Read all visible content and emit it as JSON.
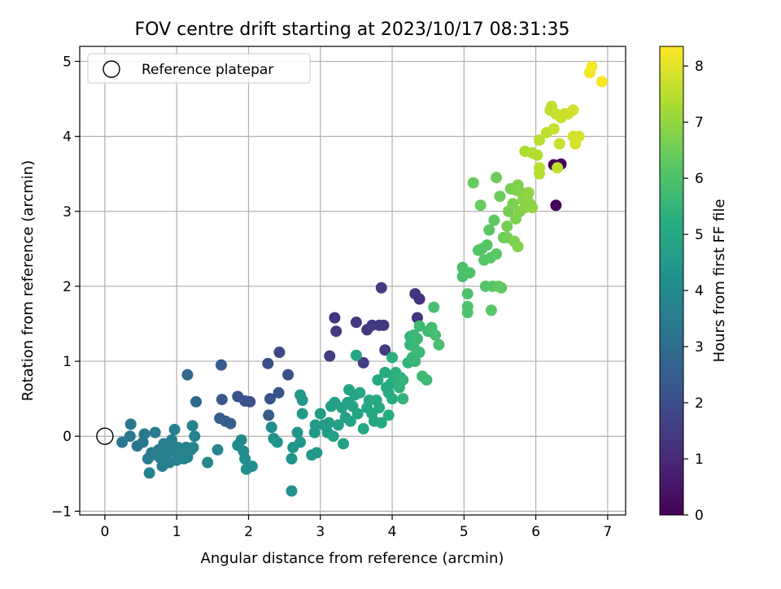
{
  "chart_data": {
    "type": "scatter",
    "title": "FOV centre drift starting at 2023/10/17 08:31:35",
    "xlabel": "Angular distance from reference (arcmin)",
    "ylabel": "Rotation from reference (arcmin)",
    "xlim": [
      -0.35,
      7.25
    ],
    "ylim": [
      -1.05,
      5.2
    ],
    "xticks": [
      "0",
      "1",
      "2",
      "3",
      "4",
      "5",
      "6",
      "7"
    ],
    "yticks": [
      "−1",
      "0",
      "1",
      "2",
      "3",
      "4",
      "5"
    ],
    "grid": true,
    "legend": {
      "position": "top-left",
      "entries": [
        "Reference platepar"
      ]
    },
    "reference_point": {
      "x": 0,
      "y": 0
    },
    "colorbar": {
      "label": "Hours from first FF file",
      "range": [
        0,
        8.35
      ],
      "ticks": [
        "0",
        "1",
        "2",
        "3",
        "4",
        "5",
        "6",
        "7",
        "8"
      ],
      "colormap": "viridis"
    },
    "points": [
      [
        6.25,
        3.62,
        0.0
      ],
      [
        6.35,
        3.63,
        0.05
      ],
      [
        6.28,
        3.08,
        0.1
      ],
      [
        3.85,
        1.98,
        1.5
      ],
      [
        4.32,
        1.9,
        1.3
      ],
      [
        4.38,
        1.83,
        1.25
      ],
      [
        3.2,
        1.58,
        1.35
      ],
      [
        4.35,
        1.58,
        1.3
      ],
      [
        3.5,
        1.52,
        1.4
      ],
      [
        3.72,
        1.48,
        1.45
      ],
      [
        3.82,
        1.48,
        1.42
      ],
      [
        3.88,
        1.48,
        1.4
      ],
      [
        3.65,
        1.42,
        1.45
      ],
      [
        3.22,
        1.4,
        1.5
      ],
      [
        3.9,
        1.15,
        1.5
      ],
      [
        3.13,
        1.07,
        1.55
      ],
      [
        3.6,
        0.98,
        1.5
      ],
      [
        2.43,
        1.12,
        1.8
      ],
      [
        2.27,
        0.97,
        2.0
      ],
      [
        2.55,
        0.82,
        2.0
      ],
      [
        2.42,
        0.58,
        2.2
      ],
      [
        2.3,
        0.5,
        2.2
      ],
      [
        1.85,
        0.53,
        2.15
      ],
      [
        1.95,
        0.47,
        2.1
      ],
      [
        2.02,
        0.46,
        2.1
      ],
      [
        1.63,
        0.49,
        2.3
      ],
      [
        2.28,
        0.28,
        2.4
      ],
      [
        1.6,
        0.24,
        2.4
      ],
      [
        1.68,
        0.2,
        2.45
      ],
      [
        1.75,
        0.17,
        2.5
      ],
      [
        1.62,
        0.95,
        2.45
      ],
      [
        1.15,
        0.82,
        2.8
      ],
      [
        1.27,
        0.46,
        2.9
      ],
      [
        0.36,
        0.16,
        3.3
      ],
      [
        0.24,
        -0.08,
        3.3
      ],
      [
        0.35,
        0.0,
        3.35
      ],
      [
        0.45,
        -0.13,
        3.3
      ],
      [
        0.53,
        -0.08,
        3.4
      ],
      [
        0.55,
        0.03,
        3.4
      ],
      [
        0.6,
        -0.3,
        3.45
      ],
      [
        0.65,
        -0.22,
        3.5
      ],
      [
        0.7,
        0.05,
        3.45
      ],
      [
        0.75,
        -0.18,
        3.5
      ],
      [
        0.78,
        -0.3,
        3.5
      ],
      [
        0.8,
        -0.4,
        3.55
      ],
      [
        0.82,
        -0.1,
        3.6
      ],
      [
        0.85,
        -0.25,
        3.55
      ],
      [
        0.88,
        -0.15,
        3.6
      ],
      [
        0.9,
        -0.35,
        3.6
      ],
      [
        0.93,
        -0.05,
        3.65
      ],
      [
        0.95,
        -0.2,
        3.6
      ],
      [
        0.97,
        0.09,
        3.6
      ],
      [
        1.0,
        -0.32,
        3.7
      ],
      [
        1.02,
        -0.15,
        3.7
      ],
      [
        1.05,
        -0.25,
        3.7
      ],
      [
        1.1,
        -0.3,
        3.7
      ],
      [
        1.15,
        -0.28,
        3.75
      ],
      [
        1.2,
        -0.18,
        3.7
      ],
      [
        1.22,
        0.14,
        3.75
      ],
      [
        1.25,
        0.0,
        3.75
      ],
      [
        1.23,
        -0.15,
        3.8
      ],
      [
        1.13,
        -0.15,
        3.7
      ],
      [
        0.62,
        -0.49,
        3.75
      ],
      [
        0.72,
        -0.25,
        3.6
      ],
      [
        0.85,
        -0.18,
        3.65
      ],
      [
        1.43,
        -0.35,
        3.9
      ],
      [
        1.57,
        -0.18,
        3.9
      ],
      [
        1.85,
        -0.12,
        4.0
      ],
      [
        1.9,
        -0.05,
        4.0
      ],
      [
        1.93,
        -0.2,
        4.05
      ],
      [
        1.95,
        -0.3,
        4.1
      ],
      [
        1.97,
        -0.44,
        4.1
      ],
      [
        2.05,
        -0.4,
        4.1
      ],
      [
        2.32,
        0.12,
        4.15
      ],
      [
        2.35,
        -0.03,
        4.2
      ],
      [
        2.4,
        -0.08,
        4.25
      ],
      [
        2.6,
        -0.73,
        4.3
      ],
      [
        2.6,
        -0.3,
        4.35
      ],
      [
        2.62,
        -0.15,
        4.35
      ],
      [
        2.68,
        0.05,
        4.4
      ],
      [
        2.72,
        -0.08,
        4.4
      ],
      [
        2.72,
        0.55,
        4.45
      ],
      [
        2.75,
        0.48,
        4.5
      ],
      [
        2.75,
        0.3,
        4.45
      ],
      [
        2.88,
        -0.25,
        4.5
      ],
      [
        2.92,
        0.05,
        4.5
      ],
      [
        2.93,
        0.15,
        4.55
      ],
      [
        2.95,
        -0.22,
        4.55
      ],
      [
        3.0,
        0.3,
        4.6
      ],
      [
        3.05,
        0.15,
        4.6
      ],
      [
        3.1,
        0.05,
        4.6
      ],
      [
        3.12,
        0.18,
        4.65
      ],
      [
        3.15,
        0.4,
        4.7
      ],
      [
        3.18,
        0.0,
        4.7
      ],
      [
        3.2,
        0.45,
        4.7
      ],
      [
        3.25,
        0.15,
        4.75
      ],
      [
        3.3,
        0.38,
        4.75
      ],
      [
        3.32,
        -0.1,
        4.8
      ],
      [
        3.35,
        0.25,
        4.8
      ],
      [
        3.38,
        0.45,
        4.8
      ],
      [
        3.4,
        0.62,
        4.85
      ],
      [
        3.42,
        0.2,
        4.85
      ],
      [
        3.45,
        0.4,
        4.85
      ],
      [
        3.48,
        0.55,
        4.9
      ],
      [
        3.5,
        1.08,
        4.9
      ],
      [
        3.52,
        0.3,
        4.9
      ],
      [
        3.55,
        0.58,
        4.95
      ],
      [
        3.6,
        0.1,
        4.95
      ],
      [
        3.65,
        0.38,
        5.0
      ],
      [
        3.68,
        0.48,
        5.0
      ],
      [
        3.72,
        0.3,
        5.0
      ],
      [
        3.75,
        0.2,
        5.0
      ],
      [
        3.78,
        0.48,
        5.05
      ],
      [
        3.8,
        0.75,
        5.05
      ],
      [
        3.82,
        0.38,
        5.05
      ],
      [
        3.85,
        0.18,
        5.1
      ],
      [
        3.9,
        0.85,
        5.1
      ],
      [
        3.92,
        0.65,
        5.1
      ],
      [
        3.95,
        0.28,
        5.15
      ],
      [
        3.95,
        0.58,
        5.15
      ],
      [
        3.98,
        0.7,
        5.2
      ],
      [
        4.0,
        0.5,
        5.2
      ],
      [
        4.0,
        1.05,
        5.3
      ],
      [
        4.02,
        0.8,
        5.3
      ],
      [
        4.05,
        0.85,
        5.35
      ],
      [
        4.08,
        0.75,
        5.4
      ],
      [
        4.1,
        0.65,
        5.4
      ],
      [
        4.12,
        0.78,
        5.4
      ],
      [
        4.15,
        0.75,
        5.45
      ],
      [
        4.15,
        0.5,
        5.45
      ],
      [
        4.22,
        0.98,
        5.5
      ],
      [
        4.25,
        1.22,
        5.5
      ],
      [
        4.25,
        1.33,
        5.55
      ],
      [
        4.28,
        1.05,
        5.55
      ],
      [
        4.3,
        1.2,
        5.6
      ],
      [
        4.3,
        1.35,
        5.6
      ],
      [
        4.32,
        1.0,
        5.6
      ],
      [
        4.35,
        1.3,
        5.65
      ],
      [
        4.38,
        1.12,
        5.65
      ],
      [
        4.38,
        1.47,
        5.7
      ],
      [
        4.42,
        0.8,
        5.7
      ],
      [
        4.48,
        0.75,
        5.7
      ],
      [
        4.5,
        1.4,
        5.75
      ],
      [
        4.55,
        1.45,
        5.8
      ],
      [
        4.58,
        1.72,
        5.85
      ],
      [
        4.6,
        1.35,
        5.85
      ],
      [
        4.65,
        1.22,
        5.9
      ],
      [
        4.98,
        2.13,
        5.9
      ],
      [
        4.98,
        2.25,
        5.95
      ],
      [
        5.05,
        1.65,
        5.95
      ],
      [
        5.05,
        1.73,
        6.0
      ],
      [
        5.08,
        2.18,
        6.0
      ],
      [
        5.05,
        1.9,
        6.0
      ],
      [
        5.2,
        2.48,
        6.05
      ],
      [
        5.25,
        2.5,
        6.1
      ],
      [
        5.28,
        2.35,
        6.1
      ],
      [
        5.3,
        2.0,
        6.1
      ],
      [
        5.32,
        2.55,
        6.15
      ],
      [
        5.35,
        2.75,
        6.2
      ],
      [
        5.37,
        2.38,
        6.2
      ],
      [
        5.38,
        1.68,
        6.2
      ],
      [
        5.4,
        2.0,
        6.2
      ],
      [
        5.42,
        2.88,
        6.25
      ],
      [
        5.45,
        2.43,
        6.25
      ],
      [
        5.48,
        2.0,
        6.3
      ],
      [
        5.52,
        1.98,
        6.3
      ],
      [
        5.13,
        3.38,
        6.4
      ],
      [
        5.23,
        3.08,
        6.4
      ],
      [
        5.45,
        3.45,
        6.45
      ],
      [
        5.5,
        3.2,
        6.45
      ],
      [
        5.55,
        2.65,
        6.5
      ],
      [
        5.6,
        2.65,
        6.55
      ],
      [
        5.6,
        2.8,
        6.6
      ],
      [
        5.62,
        3.0,
        6.6
      ],
      [
        5.65,
        3.3,
        6.65
      ],
      [
        5.68,
        3.1,
        6.65
      ],
      [
        5.7,
        2.6,
        6.7
      ],
      [
        5.72,
        2.9,
        6.7
      ],
      [
        5.73,
        3.28,
        6.7
      ],
      [
        5.75,
        2.53,
        6.75
      ],
      [
        5.75,
        3.35,
        6.75
      ],
      [
        5.78,
        3.0,
        6.8
      ],
      [
        5.8,
        3.25,
        6.8
      ],
      [
        5.82,
        3.15,
        6.85
      ],
      [
        5.85,
        3.05,
        6.85
      ],
      [
        5.88,
        3.2,
        6.9
      ],
      [
        5.92,
        3.1,
        6.9
      ],
      [
        5.95,
        3.05,
        6.95
      ],
      [
        5.9,
        3.25,
        6.95
      ],
      [
        5.85,
        3.8,
        7.3
      ],
      [
        5.95,
        3.78,
        7.4
      ],
      [
        6.02,
        3.75,
        7.4
      ],
      [
        6.05,
        3.5,
        7.45
      ],
      [
        6.05,
        3.58,
        7.45
      ],
      [
        6.05,
        3.95,
        7.5
      ],
      [
        6.15,
        4.05,
        7.55
      ],
      [
        6.2,
        4.35,
        7.6
      ],
      [
        6.22,
        4.4,
        7.6
      ],
      [
        6.25,
        4.1,
        7.65
      ],
      [
        6.28,
        4.3,
        7.65
      ],
      [
        6.3,
        3.58,
        7.6
      ],
      [
        6.33,
        3.9,
        7.7
      ],
      [
        6.35,
        4.25,
        7.7
      ],
      [
        6.4,
        4.3,
        7.75
      ],
      [
        6.45,
        4.3,
        7.75
      ],
      [
        6.52,
        4.35,
        7.8
      ],
      [
        6.52,
        4.0,
        7.8
      ],
      [
        6.55,
        3.9,
        7.85
      ],
      [
        6.6,
        4.0,
        7.85
      ],
      [
        6.75,
        4.85,
        8.2
      ],
      [
        6.78,
        4.93,
        8.25
      ],
      [
        6.92,
        4.73,
        8.3
      ]
    ]
  }
}
